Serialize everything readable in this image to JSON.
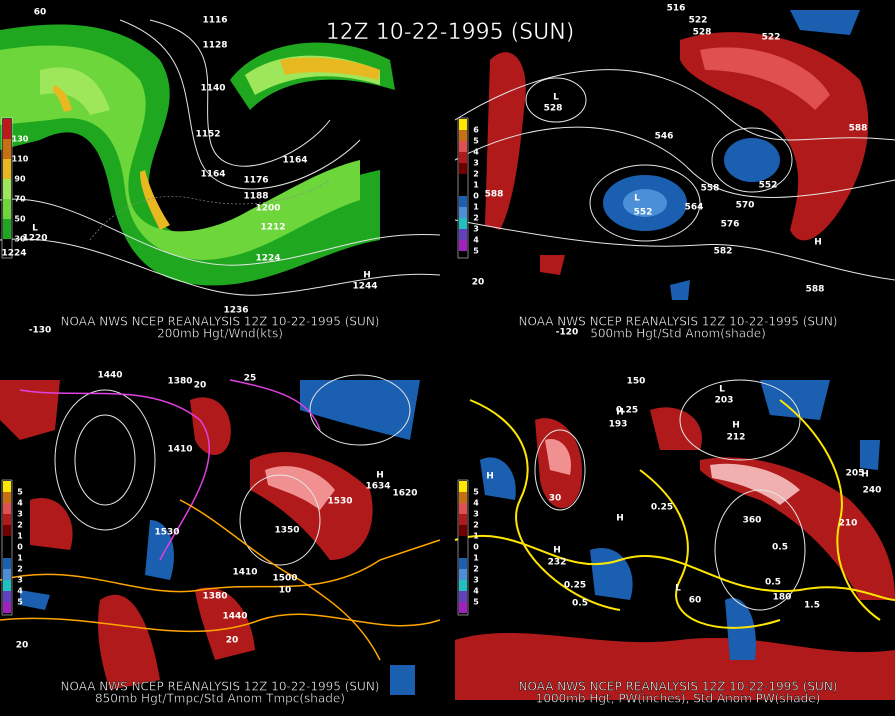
{
  "title": "12Z 10-22-1995 (SUN)",
  "panels": [
    {
      "footer": "NOAA NWS NCEP REANALYSIS 12Z 10-22-1995 (SUN)",
      "subtitle": "200mb Hgt/Wnd(kts)",
      "colorbar": [
        130,
        110,
        90,
        70,
        50,
        30
      ],
      "labels": [
        60,
        1116,
        1128,
        1140,
        1152,
        1164,
        1164,
        1176,
        1188,
        1200,
        1212,
        1224,
        1224,
        1236,
        "L",
        1220,
        "H",
        1244,
        -130
      ]
    },
    {
      "footer": "NOAA NWS NCEP REANALYSIS 12Z 10-22-1995 (SUN)",
      "subtitle": "500mb Hgt/Std Anom(shade)",
      "colorbar": [
        6,
        5,
        4,
        3,
        2,
        1,
        0,
        1,
        2,
        3,
        4,
        5
      ],
      "labels": [
        516,
        522,
        528,
        522,
        546,
        558,
        564,
        570,
        576,
        582,
        588,
        588,
        552,
        552,
        "L",
        528,
        "L",
        "H",
        588,
        -120,
        20
      ]
    },
    {
      "footer": "NOAA NWS NCEP REANALYSIS 12Z 10-22-1995 (SUN)",
      "subtitle": "850mb Hgt/Tmpc/Std Anom Tmpc(shade)",
      "colorbar": [
        5,
        4,
        3,
        2,
        1,
        0,
        1,
        2,
        3,
        4,
        5
      ],
      "labels": [
        1440,
        1380,
        1410,
        1530,
        1530,
        1620,
        1500,
        1410,
        1380,
        1440,
        20,
        20,
        10,
        "H",
        1634,
        1350,
        25,
        20
      ]
    },
    {
      "footer": "NOAA NWS NCEP REANALYSIS 12Z 10-22-1995 (SUN)",
      "subtitle": "1000mb Hgt, PW(inches), Std Anom PW(shade)",
      "colorbar": [
        5,
        4,
        3,
        2,
        1,
        0,
        1,
        2,
        3,
        4,
        5
      ],
      "labels": [
        150,
        "L",
        203,
        "H",
        193,
        "H",
        212,
        "H",
        "H",
        205,
        240,
        210,
        360,
        0.25,
        0.25,
        0.5,
        0.5,
        0.25,
        0.5,
        1.5,
        "H",
        232,
        "H",
        "L",
        60,
        180,
        30
      ]
    }
  ]
}
